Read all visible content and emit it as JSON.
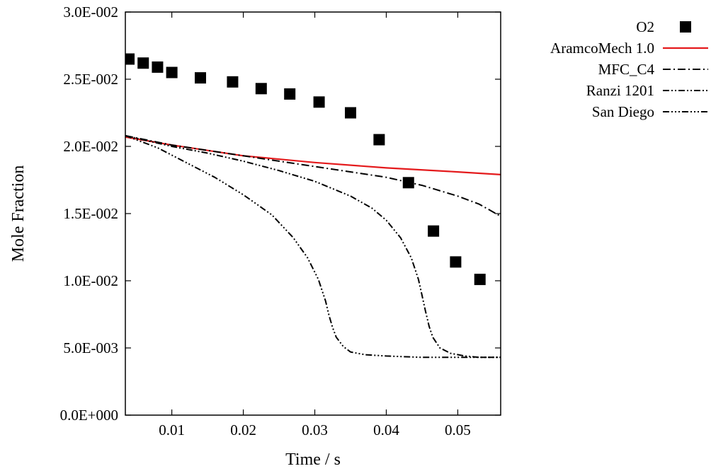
{
  "chart_data": {
    "type": "line",
    "xlabel": "Time / s",
    "ylabel": "Mole Fraction",
    "xlim": [
      0.0035,
      0.056
    ],
    "ylim": [
      0.0,
      0.03
    ],
    "x_ticks": [
      0.01,
      0.02,
      0.03,
      0.04,
      0.05
    ],
    "x_tick_labels": [
      "0.01",
      "0.02",
      "0.03",
      "0.04",
      "0.05"
    ],
    "y_ticks": [
      0.0,
      0.005,
      0.01,
      0.015,
      0.02,
      0.025,
      0.03
    ],
    "y_tick_labels": [
      "0.0E+000",
      "5.0E-003",
      "1.0E-002",
      "1.5E-002",
      "2.0E-002",
      "2.5E-002",
      "3.0E-002"
    ],
    "grid": false,
    "legend_position": "outside-top-right",
    "series": [
      {
        "name": "O2",
        "kind": "scatter",
        "marker": "square",
        "color": "#000000",
        "x": [
          0.004,
          0.006,
          0.008,
          0.01,
          0.014,
          0.0185,
          0.0225,
          0.0265,
          0.0306,
          0.035,
          0.039,
          0.0431,
          0.0466,
          0.0497,
          0.0531
        ],
        "y": [
          0.0265,
          0.0262,
          0.0259,
          0.0255,
          0.0251,
          0.0248,
          0.0243,
          0.0239,
          0.0233,
          0.0225,
          0.0205,
          0.0173,
          0.0137,
          0.0114,
          0.0101
        ]
      },
      {
        "name": "AramcoMech 1.0",
        "kind": "line",
        "color": "#e41a1c",
        "dash": "solid",
        "x": [
          0.0035,
          0.01,
          0.02,
          0.03,
          0.04,
          0.05,
          0.056
        ],
        "y": [
          0.0207,
          0.0201,
          0.0193,
          0.0188,
          0.0184,
          0.0181,
          0.0179
        ]
      },
      {
        "name": "MFC_C4",
        "kind": "line",
        "color": "#000000",
        "dash": "dash-dot",
        "x": [
          0.0035,
          0.01,
          0.02,
          0.03,
          0.04,
          0.045,
          0.05,
          0.053,
          0.056
        ],
        "y": [
          0.0208,
          0.0201,
          0.0193,
          0.0185,
          0.0177,
          0.0171,
          0.0163,
          0.0157,
          0.0148
        ]
      },
      {
        "name": "Ranzi 1201",
        "kind": "line",
        "color": "#000000",
        "dash": "dash-dot-dot",
        "x": [
          0.0035,
          0.01,
          0.015,
          0.02,
          0.025,
          0.03,
          0.035,
          0.038,
          0.04,
          0.042,
          0.0435,
          0.0445,
          0.045,
          0.0455,
          0.046,
          0.0465,
          0.0475,
          0.049,
          0.051,
          0.053,
          0.056
        ],
        "y": [
          0.0208,
          0.02,
          0.0195,
          0.0189,
          0.0182,
          0.0174,
          0.0163,
          0.0154,
          0.0145,
          0.0132,
          0.0117,
          0.0101,
          0.0089,
          0.0077,
          0.0066,
          0.0058,
          0.005,
          0.0046,
          0.0044,
          0.0043,
          0.0043
        ]
      },
      {
        "name": "San Diego",
        "kind": "line",
        "color": "#000000",
        "dash": "dash-dot-dot-dot",
        "x": [
          0.0035,
          0.008,
          0.012,
          0.016,
          0.02,
          0.024,
          0.027,
          0.029,
          0.0305,
          0.0315,
          0.032,
          0.0325,
          0.033,
          0.034,
          0.035,
          0.037,
          0.04,
          0.045,
          0.05,
          0.056
        ],
        "y": [
          0.0208,
          0.0199,
          0.0188,
          0.0177,
          0.0164,
          0.0149,
          0.0132,
          0.0117,
          0.0101,
          0.0085,
          0.0074,
          0.0065,
          0.0058,
          0.0051,
          0.0047,
          0.0045,
          0.0044,
          0.0043,
          0.0043,
          0.0043
        ]
      }
    ]
  }
}
